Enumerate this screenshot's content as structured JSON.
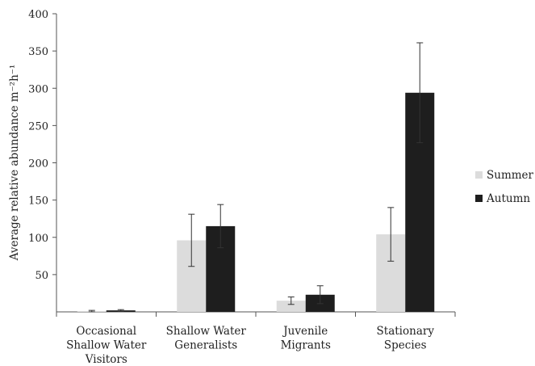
{
  "chart_data": {
    "type": "bar",
    "categories": [
      [
        "Occasional",
        "Shallow Water",
        "Visitors"
      ],
      [
        "Shallow Water",
        "Generalists"
      ],
      [
        "Juvenile",
        "Migrants"
      ],
      [
        "Stationary",
        "Species"
      ]
    ],
    "series": [
      {
        "name": "Summer",
        "values": [
          1,
          96,
          15,
          104
        ],
        "error": [
          1,
          35,
          5,
          36
        ],
        "color": "#dcdcdc"
      },
      {
        "name": "Autumn",
        "values": [
          2,
          115,
          23,
          294
        ],
        "error": [
          1,
          29,
          12,
          67
        ],
        "color": "#1e1e1e"
      }
    ],
    "ylabel": "Average relative abundance m⁻²h⁻¹",
    "ylim": [
      0,
      400
    ],
    "yticks": [
      50,
      100,
      150,
      200,
      250,
      300,
      350,
      400
    ],
    "ytick_labels": [
      "50",
      "100",
      "150",
      "200",
      "250",
      "300",
      "350",
      "400"
    ],
    "grid": false,
    "legend_position": "right"
  }
}
